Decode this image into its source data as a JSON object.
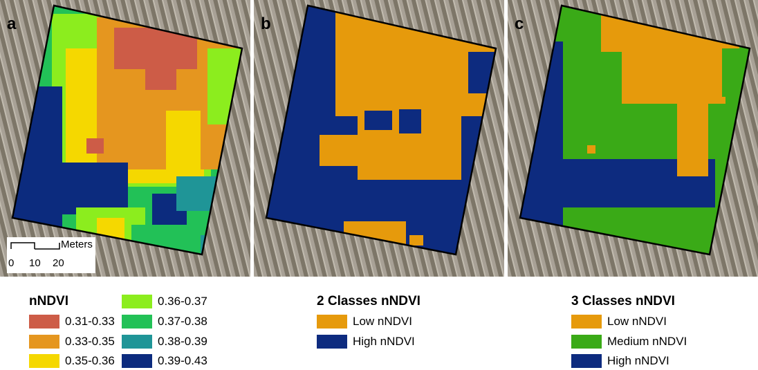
{
  "panels": [
    {
      "id": "a",
      "letter": "a"
    },
    {
      "id": "b",
      "letter": "b"
    },
    {
      "id": "c",
      "letter": "c"
    }
  ],
  "scale_bar": {
    "label": "Meters",
    "ticks": [
      "0",
      "10",
      "20"
    ]
  },
  "colors": {
    "dark_red": "#cd5c47",
    "orange": "#e5961f",
    "yellow": "#f5d800",
    "light_green": "#8ced1e",
    "green": "#22c157",
    "teal": "#1f9597",
    "navy": "#0c2b7e",
    "class_low": "#e69a0c",
    "class_medium": "#3aaa17",
    "class_high": "#0d2b7f"
  },
  "legends": {
    "nndvi": {
      "title": "nNDVI",
      "items": [
        {
          "label": "0.31-0.33",
          "color": "#cd5c47"
        },
        {
          "label": "0.33-0.35",
          "color": "#e5961f"
        },
        {
          "label": "0.35-0.36",
          "color": "#f5d800"
        },
        {
          "label": "0.36-0.37",
          "color": "#8ced1e"
        },
        {
          "label": "0.37-0.38",
          "color": "#22c157"
        },
        {
          "label": "0.38-0.39",
          "color": "#1f9597"
        },
        {
          "label": "0.39-0.43",
          "color": "#0c2b7e"
        }
      ]
    },
    "two_classes": {
      "title": "2 Classes nNDVI",
      "items": [
        {
          "label": "Low nNDVI",
          "color": "#e69a0c"
        },
        {
          "label": "High nNDVI",
          "color": "#0d2b7f"
        }
      ]
    },
    "three_classes": {
      "title": "3 Classes nNDVI",
      "items": [
        {
          "label": "Low nNDVI",
          "color": "#e69a0c"
        },
        {
          "label": "Medium nNDVI",
          "color": "#3aaa17"
        },
        {
          "label": "High nNDVI",
          "color": "#0d2b7f"
        }
      ]
    }
  }
}
